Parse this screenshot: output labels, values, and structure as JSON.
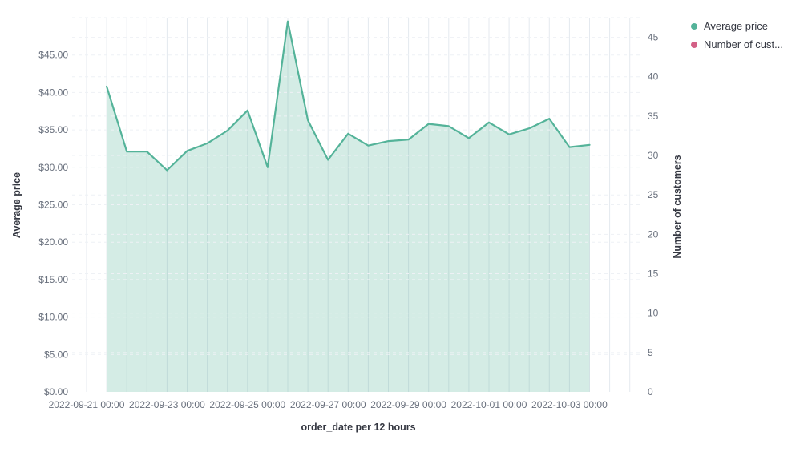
{
  "legend": {
    "items": [
      {
        "label": "Average price",
        "color": "#54B399"
      },
      {
        "label": "Number of cust...",
        "color": "#D36086"
      }
    ]
  },
  "chart_data": {
    "type": "area",
    "title": "",
    "xlabel": "order_date per 12 hours",
    "ylabel_left": "Average price",
    "ylabel_right": "Number of customers",
    "ylim_left": [
      0,
      50
    ],
    "ylim_right": [
      0,
      47.5
    ],
    "grid": true,
    "legend_position": "top-right",
    "x_tick_labels": [
      "2022-09-21 00:00",
      "2022-09-23 00:00",
      "2022-09-25 00:00",
      "2022-09-27 00:00",
      "2022-09-29 00:00",
      "2022-10-01 00:00",
      "2022-10-03 00:00"
    ],
    "left_tick_labels": [
      "$0.00",
      "$5.00",
      "$10.00",
      "$15.00",
      "$20.00",
      "$25.00",
      "$30.00",
      "$35.00",
      "$40.00",
      "$45.00"
    ],
    "right_tick_labels": [
      "0",
      "5",
      "10",
      "15",
      "20",
      "25",
      "30",
      "35",
      "40",
      "45"
    ],
    "x": [
      "2022-09-21 12:00",
      "2022-09-22 00:00",
      "2022-09-22 12:00",
      "2022-09-23 00:00",
      "2022-09-23 12:00",
      "2022-09-24 00:00",
      "2022-09-24 12:00",
      "2022-09-25 00:00",
      "2022-09-25 12:00",
      "2022-09-26 00:00",
      "2022-09-26 12:00",
      "2022-09-27 00:00",
      "2022-09-27 12:00",
      "2022-09-28 00:00",
      "2022-09-28 12:00",
      "2022-09-29 00:00",
      "2022-09-29 12:00",
      "2022-09-30 00:00",
      "2022-09-30 12:00",
      "2022-10-01 00:00",
      "2022-10-01 12:00",
      "2022-10-02 00:00",
      "2022-10-02 12:00",
      "2022-10-03 00:00",
      "2022-10-03 12:00"
    ],
    "series": [
      {
        "name": "Average price",
        "yaxis": "left",
        "color": "#54B399",
        "fill_opacity": 0.25,
        "values": [
          40.8,
          32.1,
          32.1,
          29.6,
          32.2,
          33.2,
          34.9,
          37.6,
          30.0,
          49.5,
          36.3,
          31.0,
          34.5,
          32.9,
          33.5,
          33.7,
          35.8,
          35.5,
          33.9,
          36.0,
          34.4,
          35.2,
          36.5,
          32.7,
          33.0
        ]
      },
      {
        "name": "Number of customers",
        "yaxis": "right",
        "color": "#D36086",
        "visible_in_plot": false,
        "values": []
      }
    ]
  }
}
